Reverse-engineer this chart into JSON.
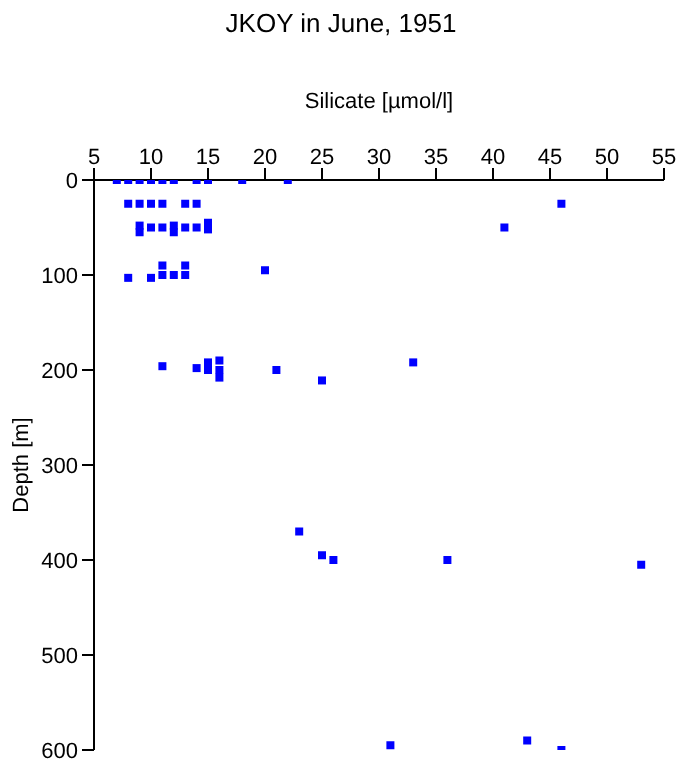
{
  "chart_data": {
    "type": "scatter",
    "title": "JKOY in June, 1951",
    "xlabel": "Silicate [µmol/l]",
    "ylabel": "Depth [m]",
    "xlim": [
      5,
      55
    ],
    "xticks": [
      5,
      10,
      15,
      20,
      25,
      30,
      35,
      40,
      45,
      50,
      55
    ],
    "ylim": [
      600,
      0
    ],
    "yticks": [
      0,
      100,
      200,
      300,
      400,
      500,
      600
    ],
    "grid": false,
    "legend": false,
    "marker": "square",
    "series": [
      {
        "color": "#0000ff",
        "x": [
          7,
          8,
          9,
          10,
          11,
          12,
          14,
          15,
          18,
          22,
          8,
          9,
          10,
          11,
          13,
          14,
          46,
          9,
          9,
          10,
          11,
          12,
          12,
          13,
          14,
          15,
          15,
          41,
          8,
          10,
          11,
          11,
          12,
          13,
          13,
          20,
          11,
          14,
          15,
          15,
          16,
          16,
          16,
          21,
          25,
          33,
          23,
          25,
          26,
          36,
          53,
          31,
          43,
          46
        ],
        "values": [
          0,
          0,
          0,
          0,
          0,
          0,
          0,
          0,
          0,
          0,
          25,
          25,
          25,
          25,
          25,
          25,
          25,
          48,
          55,
          50,
          50,
          48,
          55,
          50,
          50,
          45,
          52,
          50,
          103,
          103,
          90,
          100,
          100,
          90,
          100,
          95,
          196,
          198,
          192,
          200,
          190,
          200,
          208,
          200,
          211,
          192,
          370,
          395,
          400,
          400,
          405,
          595,
          590,
          600
        ]
      }
    ]
  }
}
